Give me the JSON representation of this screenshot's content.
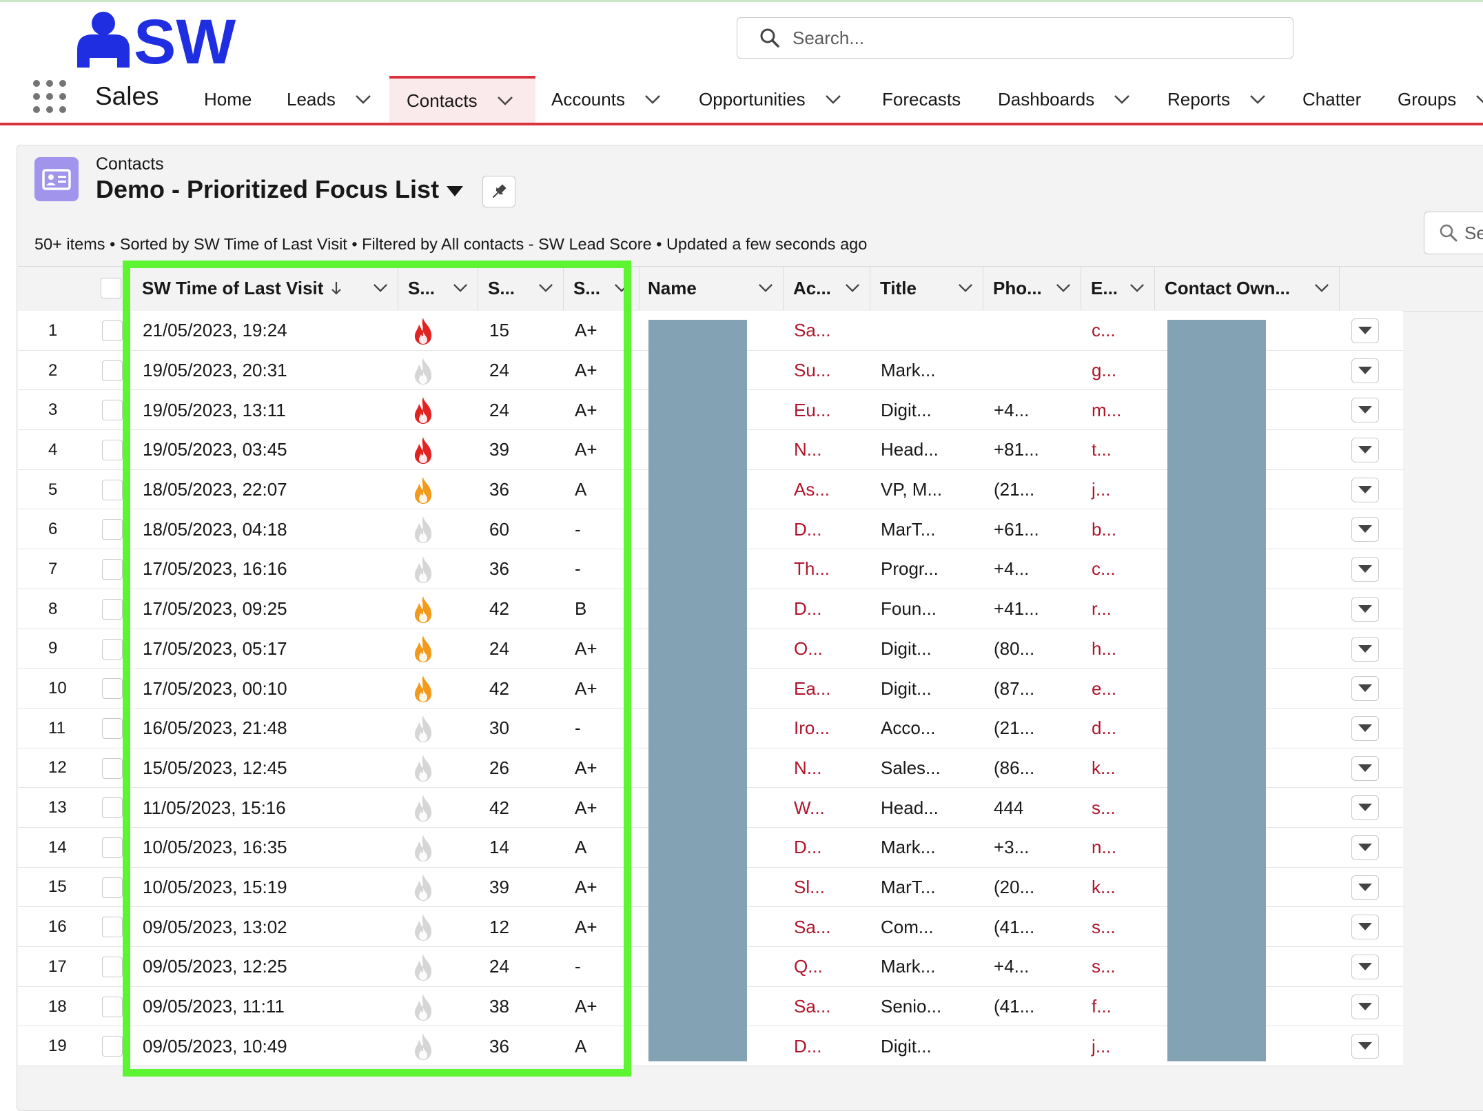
{
  "header": {
    "logo_text": "SW",
    "search_placeholder": "Search..."
  },
  "nav": {
    "app_name": "Sales",
    "items": [
      {
        "label": "Home",
        "has_menu": false
      },
      {
        "label": "Leads",
        "has_menu": true
      },
      {
        "label": "Contacts",
        "has_menu": true,
        "active": true
      },
      {
        "label": "Accounts",
        "has_menu": true
      },
      {
        "label": "Opportunities",
        "has_menu": true
      },
      {
        "label": "Forecasts",
        "has_menu": false
      },
      {
        "label": "Dashboards",
        "has_menu": true
      },
      {
        "label": "Reports",
        "has_menu": true
      },
      {
        "label": "Chatter",
        "has_menu": false
      },
      {
        "label": "Groups",
        "has_menu": true
      }
    ],
    "accent_color": "#d9333f"
  },
  "list": {
    "object_label": "Contacts",
    "title": "Demo - Prioritized Focus List",
    "meta": "50+ items • Sorted by SW Time of Last Visit • Filtered by All contacts - SW Lead Score • Updated a few seconds ago",
    "search_placeholder": "Se"
  },
  "columns": [
    "SW Time of Last Visit",
    "S...",
    "S...",
    "S...",
    "Name",
    "Ac...",
    "Title",
    "Pho...",
    "E...",
    "Contact Own..."
  ],
  "sort_icon": "arrow-down-icon",
  "flame_colors": {
    "hot": "#e32222",
    "warm": "#f39a1b",
    "cold": "#d6d6d6"
  },
  "rows": [
    {
      "n": "1",
      "time": "21/05/2023, 19:24",
      "heat": "hot",
      "score": "15",
      "grade": "A+",
      "account": "Sa...",
      "title": "",
      "phone": "",
      "email": "c..."
    },
    {
      "n": "2",
      "time": "19/05/2023, 20:31",
      "heat": "cold",
      "score": "24",
      "grade": "A+",
      "account": "Su...",
      "title": "Mark...",
      "phone": "",
      "email": "g..."
    },
    {
      "n": "3",
      "time": "19/05/2023, 13:11",
      "heat": "hot",
      "score": "24",
      "grade": "A+",
      "account": "Eu...",
      "title": "Digit...",
      "phone": "+4...",
      "email": "m..."
    },
    {
      "n": "4",
      "time": "19/05/2023, 03:45",
      "heat": "hot",
      "score": "39",
      "grade": "A+",
      "account": "N...",
      "title": "Head...",
      "phone": "+81...",
      "email": "t..."
    },
    {
      "n": "5",
      "time": "18/05/2023, 22:07",
      "heat": "warm",
      "score": "36",
      "grade": "A",
      "account": "As...",
      "title": "VP, M...",
      "phone": "(21...",
      "email": "j..."
    },
    {
      "n": "6",
      "time": "18/05/2023, 04:18",
      "heat": "cold",
      "score": "60",
      "grade": "-",
      "account": "D...",
      "title": "MarT...",
      "phone": "+61...",
      "email": "b..."
    },
    {
      "n": "7",
      "time": "17/05/2023, 16:16",
      "heat": "cold",
      "score": "36",
      "grade": "-",
      "account": "Th...",
      "title": "Progr...",
      "phone": "+4...",
      "email": "c..."
    },
    {
      "n": "8",
      "time": "17/05/2023, 09:25",
      "heat": "warm",
      "score": "42",
      "grade": "B",
      "account": "D...",
      "title": "Foun...",
      "phone": "+41...",
      "email": "r..."
    },
    {
      "n": "9",
      "time": "17/05/2023, 05:17",
      "heat": "warm",
      "score": "24",
      "grade": "A+",
      "account": "O...",
      "title": "Digit...",
      "phone": "(80...",
      "email": "h..."
    },
    {
      "n": "10",
      "time": "17/05/2023, 00:10",
      "heat": "warm",
      "score": "42",
      "grade": "A+",
      "account": "Ea...",
      "title": "Digit...",
      "phone": "(87...",
      "email": "e..."
    },
    {
      "n": "11",
      "time": "16/05/2023, 21:48",
      "heat": "cold",
      "score": "30",
      "grade": "-",
      "account": "Iro...",
      "title": "Acco...",
      "phone": "(21...",
      "email": "d..."
    },
    {
      "n": "12",
      "time": "15/05/2023, 12:45",
      "heat": "cold",
      "score": "26",
      "grade": "A+",
      "account": "N...",
      "title": "Sales...",
      "phone": "(86...",
      "email": "k..."
    },
    {
      "n": "13",
      "time": "11/05/2023, 15:16",
      "heat": "cold",
      "score": "42",
      "grade": "A+",
      "account": "W...",
      "title": "Head...",
      "phone": "444",
      "email": "s..."
    },
    {
      "n": "14",
      "time": "10/05/2023, 16:35",
      "heat": "cold",
      "score": "14",
      "grade": "A",
      "account": "D...",
      "title": "Mark...",
      "phone": "+3...",
      "email": "n..."
    },
    {
      "n": "15",
      "time": "10/05/2023, 15:19",
      "heat": "cold",
      "score": "39",
      "grade": "A+",
      "account": "Sl...",
      "title": "MarT...",
      "phone": "(20...",
      "email": "k..."
    },
    {
      "n": "16",
      "time": "09/05/2023, 13:02",
      "heat": "cold",
      "score": "12",
      "grade": "A+",
      "account": "Sa...",
      "title": "Com...",
      "phone": "(41...",
      "email": "s..."
    },
    {
      "n": "17",
      "time": "09/05/2023, 12:25",
      "heat": "cold",
      "score": "24",
      "grade": "-",
      "account": "Q...",
      "title": "Mark...",
      "phone": "+4...",
      "email": "s..."
    },
    {
      "n": "18",
      "time": "09/05/2023, 11:11",
      "heat": "cold",
      "score": "38",
      "grade": "A+",
      "account": "Sa...",
      "title": "Senio...",
      "phone": "(41...",
      "email": "f..."
    },
    {
      "n": "19",
      "time": "09/05/2023, 10:49",
      "heat": "cold",
      "score": "36",
      "grade": "A",
      "account": "D...",
      "title": "Digit...",
      "phone": "",
      "email": "j..."
    }
  ]
}
